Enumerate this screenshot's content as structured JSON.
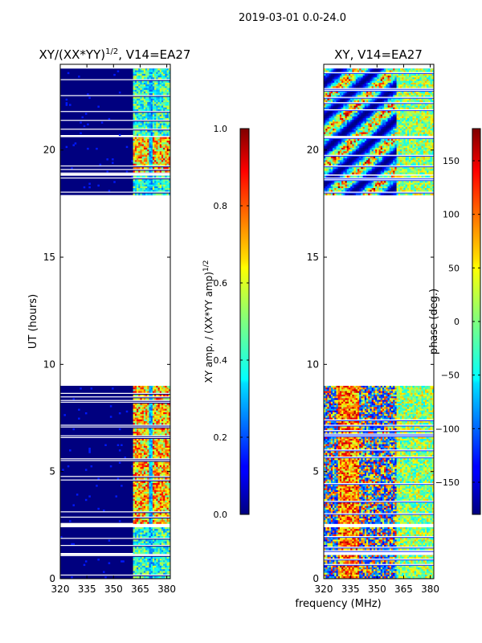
{
  "suptitle": "2019-03-01 0.0-24.0",
  "colors": {
    "axis": "#000000",
    "background": "#ffffff",
    "fill_band": "#00007f"
  },
  "chart_data": [
    {
      "type": "heatmap",
      "title": "XY/(XX*YY)",
      "title_exp": "1/2",
      "title_suffix": ", V14=EA27",
      "xlabel": "",
      "ylabel": "UT (hours)",
      "xlim": [
        320,
        382
      ],
      "ylim": [
        0,
        24
      ],
      "xticks": [
        320,
        335,
        350,
        365,
        380
      ],
      "yticks": [
        0,
        5,
        10,
        15,
        20
      ],
      "x_regions": [
        [
          320,
          360,
          "low"
        ],
        [
          360,
          382,
          "high"
        ]
      ],
      "data_bands_hours": [
        [
          0.0,
          1.1
        ],
        [
          1.2,
          2.4
        ],
        [
          2.6,
          9.0
        ],
        [
          17.9,
          18.8
        ],
        [
          18.9,
          20.6
        ],
        [
          20.7,
          23.8
        ]
      ],
      "colorbar": {
        "label": "XY amp. / (XX*YY amp)",
        "label_exp": "1/2",
        "range": [
          0.0,
          1.0
        ],
        "ticks": [
          0.0,
          0.2,
          0.4,
          0.6,
          0.8,
          1.0
        ],
        "tick_labels": [
          "0.0",
          "0.2",
          "0.4",
          "0.6",
          "0.8",
          "1.0"
        ]
      }
    },
    {
      "type": "heatmap",
      "title": "XY, V14=EA27",
      "xlabel": "frequency (MHz)",
      "ylabel": "",
      "xlim": [
        320,
        382
      ],
      "ylim": [
        0,
        24
      ],
      "xticks": [
        320,
        335,
        350,
        365,
        380
      ],
      "yticks": [
        0,
        5,
        10,
        15,
        20
      ],
      "data_bands_hours": [
        [
          0.0,
          1.1
        ],
        [
          1.2,
          2.4
        ],
        [
          2.6,
          9.0
        ],
        [
          17.9,
          18.8
        ],
        [
          18.9,
          20.6
        ],
        [
          20.7,
          23.8
        ]
      ],
      "colorbar": {
        "label": "phase (deg.)",
        "range": [
          -180,
          180
        ],
        "ticks": [
          -150,
          -100,
          -50,
          0,
          50,
          100,
          150
        ],
        "tick_labels": [
          "−150",
          "−100",
          "−50",
          "0",
          "50",
          "100",
          "150"
        ]
      }
    }
  ]
}
